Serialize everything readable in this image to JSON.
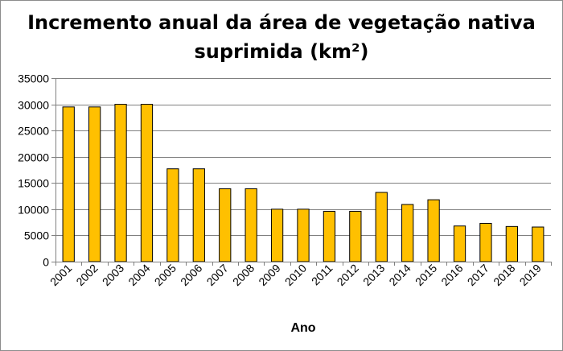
{
  "chart_data": {
    "type": "bar",
    "title_lines": [
      "Incremento anual da área de vegetação nativa",
      "suprimida (km²)"
    ],
    "xlabel": "Ano",
    "ylabel": "",
    "categories": [
      "2001",
      "2002",
      "2003",
      "2004",
      "2005",
      "2006",
      "2007",
      "2008",
      "2009",
      "2010",
      "2011",
      "2012",
      "2013",
      "2014",
      "2015",
      "2016",
      "2017",
      "2018",
      "2019"
    ],
    "values": [
      29500,
      29500,
      30000,
      30000,
      17700,
      17700,
      13900,
      13900,
      10000,
      10000,
      9600,
      9600,
      13200,
      10900,
      11800,
      6800,
      7300,
      6700,
      6600
    ],
    "ylim": [
      0,
      35000
    ],
    "yticks": [
      0,
      5000,
      10000,
      15000,
      20000,
      25000,
      30000,
      35000
    ],
    "grid": true,
    "legend": "none",
    "colors": {
      "bar_fill": "#FFC000",
      "bar_stroke": "#000000",
      "grid": "#808080",
      "axis": "#808080"
    }
  }
}
